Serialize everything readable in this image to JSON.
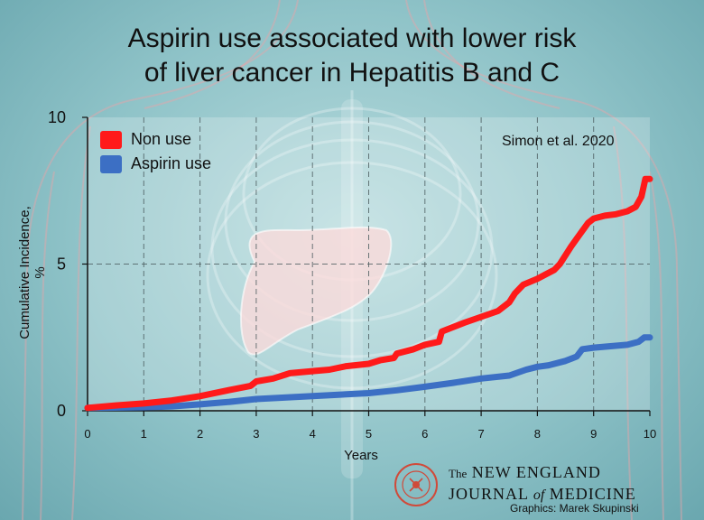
{
  "title_line1": "Aspirin use associated with lower risk",
  "title_line2": "of liver cancer in Hepatitis B and C",
  "source_note": "Simon et al. 2020",
  "journal": {
    "prefix": "The",
    "line1": "NEW ENGLAND",
    "line2_a": "JOURNAL",
    "line2_of": "of",
    "line2_b": "MEDICINE"
  },
  "credit": "Graphics: Marek Skupinski",
  "colors": {
    "non_use": "#ff1a1a",
    "aspirin_use": "#3c6fc4"
  },
  "chart_data": {
    "type": "line",
    "title": "Aspirin use associated with lower risk of liver cancer in Hepatitis B and C",
    "xlabel": "Years",
    "ylabel": "Cumulative Incidence, %",
    "xlim": [
      0,
      10
    ],
    "ylim": [
      0,
      10
    ],
    "x_ticks": [
      "0",
      "1",
      "2",
      "3",
      "4",
      "5",
      "6",
      "7",
      "8",
      "9",
      "10"
    ],
    "y_ticks": [
      "0",
      "5",
      "10"
    ],
    "grid": "dashed vertical at each year, dashed horizontal at 5",
    "legend_position": "top-left",
    "series": [
      {
        "name": "Non use",
        "color": "#ff1a1a",
        "points": [
          [
            0,
            0.1
          ],
          [
            0.5,
            0.18
          ],
          [
            1,
            0.25
          ],
          [
            1.5,
            0.35
          ],
          [
            2,
            0.5
          ],
          [
            2.5,
            0.7
          ],
          [
            2.9,
            0.85
          ],
          [
            3,
            1.0
          ],
          [
            3.3,
            1.1
          ],
          [
            3.6,
            1.28
          ],
          [
            4,
            1.35
          ],
          [
            4.3,
            1.4
          ],
          [
            4.6,
            1.52
          ],
          [
            5,
            1.6
          ],
          [
            5.2,
            1.72
          ],
          [
            5.45,
            1.8
          ],
          [
            5.5,
            1.95
          ],
          [
            5.8,
            2.1
          ],
          [
            6,
            2.25
          ],
          [
            6.25,
            2.35
          ],
          [
            6.3,
            2.7
          ],
          [
            6.5,
            2.85
          ],
          [
            6.7,
            3.0
          ],
          [
            7,
            3.2
          ],
          [
            7.3,
            3.4
          ],
          [
            7.5,
            3.7
          ],
          [
            7.6,
            4.0
          ],
          [
            7.75,
            4.3
          ],
          [
            8,
            4.5
          ],
          [
            8.15,
            4.65
          ],
          [
            8.3,
            4.8
          ],
          [
            8.4,
            5.0
          ],
          [
            8.6,
            5.6
          ],
          [
            8.75,
            6.0
          ],
          [
            8.9,
            6.4
          ],
          [
            9,
            6.55
          ],
          [
            9.2,
            6.65
          ],
          [
            9.4,
            6.7
          ],
          [
            9.6,
            6.8
          ],
          [
            9.75,
            6.95
          ],
          [
            9.85,
            7.3
          ],
          [
            9.92,
            7.9
          ],
          [
            10,
            7.9
          ]
        ]
      },
      {
        "name": "Aspirin use",
        "color": "#3c6fc4",
        "points": [
          [
            0,
            0.1
          ],
          [
            1,
            0.12
          ],
          [
            1.5,
            0.15
          ],
          [
            2,
            0.22
          ],
          [
            2.5,
            0.3
          ],
          [
            3,
            0.4
          ],
          [
            3.5,
            0.45
          ],
          [
            4,
            0.5
          ],
          [
            4.5,
            0.55
          ],
          [
            5,
            0.6
          ],
          [
            5.5,
            0.7
          ],
          [
            6,
            0.82
          ],
          [
            6.5,
            0.95
          ],
          [
            7,
            1.1
          ],
          [
            7.5,
            1.2
          ],
          [
            7.8,
            1.4
          ],
          [
            8,
            1.5
          ],
          [
            8.2,
            1.55
          ],
          [
            8.5,
            1.7
          ],
          [
            8.7,
            1.85
          ],
          [
            8.8,
            2.1
          ],
          [
            9,
            2.15
          ],
          [
            9.3,
            2.2
          ],
          [
            9.6,
            2.25
          ],
          [
            9.8,
            2.35
          ],
          [
            9.9,
            2.5
          ],
          [
            10,
            2.5
          ]
        ]
      }
    ]
  }
}
